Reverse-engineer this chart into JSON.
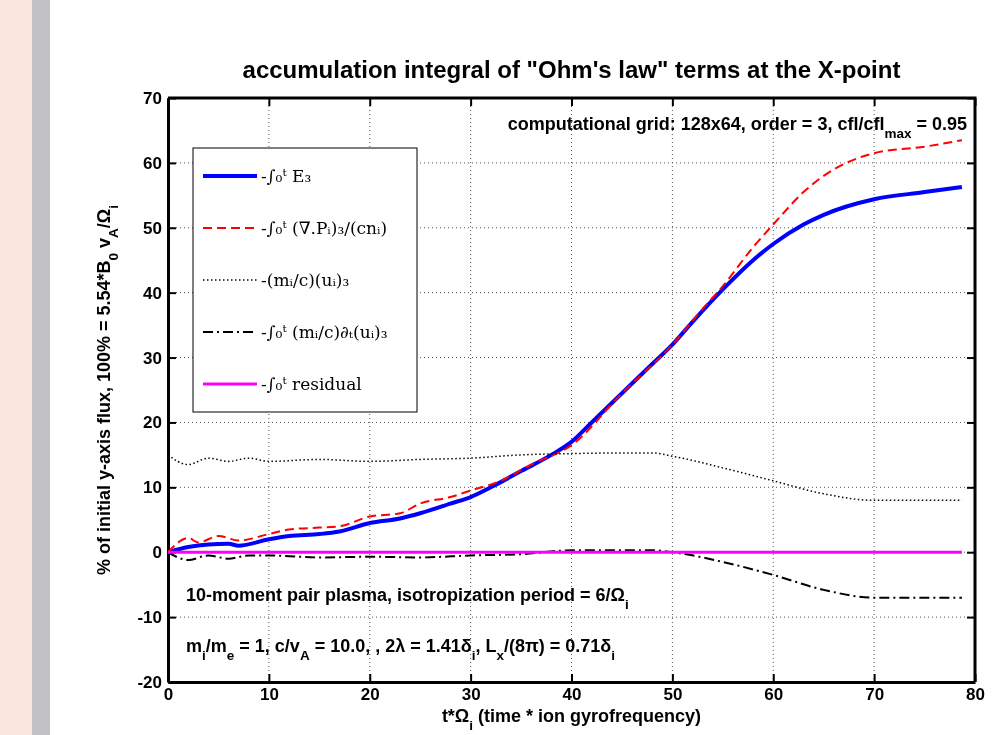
{
  "chart_data": {
    "type": "line",
    "title": "accumulation integral of \"Ohm's law\" terms at the X-point",
    "xlabel": "t*Ω$_{i}$ (time * ion gyrofrequency)",
    "ylabel": "% of initial y-axis flux, 100% =  5.54*B$_{0}$ v$_{A}$/Ω$_{i}$",
    "xlim": [
      0,
      80
    ],
    "xticks": [
      0,
      10,
      20,
      30,
      40,
      50,
      60,
      70,
      80
    ],
    "ylim": [
      -20,
      70
    ],
    "yticks": [
      -20,
      -10,
      0,
      10,
      20,
      30,
      40,
      50,
      60,
      70
    ],
    "grid": true,
    "legend": "top left",
    "annotations": [
      "computational grid: 128x64, order = 3, cfl/cfl$_{max}$ = 0.95",
      "10-moment pair plasma, isotropization period = 6/Ω$_{i}$",
      "m$_{i}$/m$_{e}$ = 1, c/v$_{A}$ = 10.0, , 2λ = 1.41δ$_{i}$, L$_{x}$/(8π) = 0.71δ$_{i}$"
    ],
    "series": [
      {
        "name": "-∫₀ᵗ E₃",
        "color": "#0000ff",
        "line_style": "solid",
        "x": [
          0,
          2,
          4,
          6,
          7,
          10,
          12,
          15,
          17,
          20,
          23,
          25,
          28,
          30,
          32,
          35,
          38,
          40,
          42,
          45,
          48,
          50,
          52,
          55,
          58,
          60,
          63,
          65,
          70,
          75,
          78.7
        ],
        "values": [
          0,
          0.8,
          1.2,
          1.3,
          1,
          2,
          2.5,
          2.8,
          3.2,
          4.5,
          5.2,
          6,
          7.5,
          8.5,
          10,
          12.5,
          15,
          17,
          20,
          24.5,
          29,
          32,
          35.5,
          40.5,
          45,
          47.5,
          50.5,
          52,
          54.4,
          55.5,
          56.3
        ]
      },
      {
        "name": "-∫₀ᵗ (∇.Pᵢ)₃/(cnᵢ)",
        "color": "#ff0000",
        "line_style": "dashed",
        "x": [
          0,
          2,
          3,
          5,
          7,
          10,
          12,
          15,
          17,
          20,
          23,
          25,
          28,
          30,
          33,
          36,
          40,
          45,
          50,
          53,
          55,
          58,
          60,
          63,
          65,
          70,
          75,
          78.7
        ],
        "values": [
          0,
          2.2,
          1.5,
          2.5,
          1.8,
          2.8,
          3.5,
          3.8,
          4,
          5.5,
          6,
          7.5,
          8.5,
          9.5,
          11,
          13.5,
          16.5,
          24.5,
          32,
          37.5,
          41,
          47,
          50.5,
          55.5,
          58,
          61.5,
          62.5,
          63.5
        ]
      },
      {
        "name": "-(mᵢ/c)(uᵢ)₃",
        "color": "#000000",
        "line_style": "dotted",
        "x": [
          0,
          2,
          4,
          6,
          8,
          10,
          15,
          20,
          25,
          30,
          35,
          40,
          45,
          48,
          50,
          55,
          60,
          65,
          70,
          75,
          78.7
        ],
        "values": [
          15,
          13.5,
          14.5,
          14,
          14.5,
          14,
          14.3,
          14,
          14.3,
          14.5,
          15,
          15.2,
          15.3,
          15.3,
          14.8,
          13,
          11,
          9,
          8,
          8,
          8
        ]
      },
      {
        "name": "-∫₀ᵗ (mᵢ/c)∂ₜ(uᵢ)₃",
        "color": "#000000",
        "line_style": "dashdot",
        "x": [
          0,
          2,
          4,
          6,
          8,
          10,
          15,
          20,
          25,
          30,
          35,
          40,
          45,
          48,
          50,
          55,
          60,
          65,
          70,
          75,
          78.7
        ],
        "values": [
          0,
          -1.2,
          -0.5,
          -1,
          -0.5,
          -0.5,
          -0.8,
          -0.7,
          -0.8,
          -0.5,
          -0.3,
          0.3,
          0.3,
          0.3,
          0,
          -1.5,
          -3.5,
          -5.8,
          -7,
          -7,
          -7
        ]
      },
      {
        "name": "-∫₀ᵗ residual",
        "color": "#ff00ff",
        "line_style": "solid",
        "x": [
          0,
          78.7
        ],
        "values": [
          0,
          0
        ]
      }
    ]
  }
}
